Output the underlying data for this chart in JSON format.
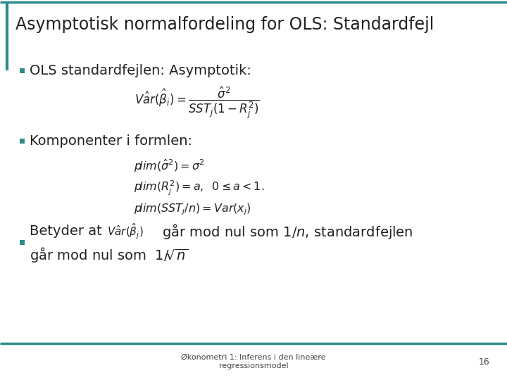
{
  "title": "Asymptotisk normalfordeling for OLS: Standardfejl",
  "title_fontsize": 17,
  "text_color": "#222222",
  "teal_color": "#2E8B8B",
  "bg_color": "#FFFFFF",
  "footer_text": "Økonometri 1: Inferens i den lineære\nregressionsmodel",
  "footer_number": "16",
  "bullet1_text": "OLS standardfejlen: Asymptotik:",
  "bullet2_text": "Komponenter i formlen:",
  "formula1": "$\\mathit{V\\hat{a}r}(\\hat{\\beta}_i) = \\dfrac{\\hat{\\sigma}^2}{\\mathit{SST}_j(1-R_j^2)}$",
  "formula2a": "$p\\mathbf{lim}(\\hat{\\sigma}^2) = \\sigma^2$",
  "formula2b": "$p\\mathbf{lim}(R_j^2) = a, \\;\\; 0 \\leq a < 1.$",
  "formula2c": "$p\\mathbf{lim}(\\mathit{SST}_j/n) = \\mathit{Var}(x_j)$",
  "bullet3a": "Betyder at ",
  "bullet3b": " går mod nul som 1/",
  "bullet3c": ", standardfejlen",
  "bullet3d": "går mod nul som 1/"
}
